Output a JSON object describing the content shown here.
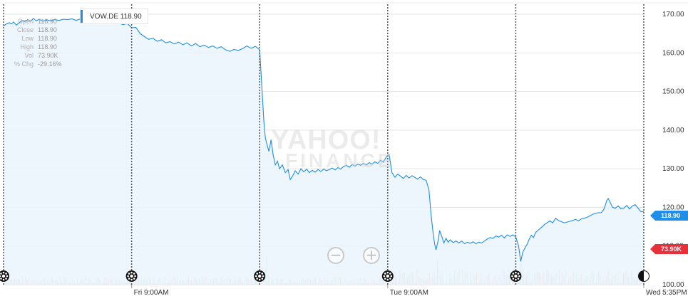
{
  "symbol": "VOW.DE",
  "last_price": "118.90",
  "volume_tag": "73.90K",
  "stats": [
    {
      "label": "Open",
      "value": "118.90"
    },
    {
      "label": "Close",
      "value": "118.90"
    },
    {
      "label": "Low",
      "value": "118.90"
    },
    {
      "label": "High",
      "value": "118.90"
    },
    {
      "label": "Vol",
      "value": "73.90K"
    },
    {
      "label": "% Chg",
      "value": "-29.16%"
    }
  ],
  "watermark": {
    "line1": "YAHOO!",
    "line2": "FINANCE"
  },
  "zoom": {
    "minus": "−",
    "plus": "+"
  },
  "colors": {
    "line": "#1e8ee8",
    "area": "#eaf4fd",
    "volume_up": "#b9dfc4",
    "volume_down": "#f3b8c0",
    "price_tag": "#1e8ee8",
    "volume_tag": "#e8303b"
  },
  "chart_data": {
    "type": "line",
    "title": "",
    "ylabel": "",
    "ylim": [
      100,
      170
    ],
    "y_ticks": [
      "170.00",
      "160.00",
      "150.00",
      "140.00",
      "130.00",
      "120.00",
      "110.00",
      "100.00"
    ],
    "x_ticks": [
      "Fri 9:00AM",
      "Tue 9:00AM",
      "Wed 5:35PM"
    ],
    "session_markers": 6,
    "series": [
      {
        "values": [
          [
            0,
            167.0
          ],
          [
            4,
            167.5
          ],
          [
            8,
            167.8
          ],
          [
            11,
            167.5
          ],
          [
            14,
            168.0
          ],
          [
            18,
            167.2
          ],
          [
            22,
            167.8
          ],
          [
            26,
            168.4
          ],
          [
            30,
            168.1
          ],
          [
            34,
            168.6
          ],
          [
            38,
            168.2
          ],
          [
            42,
            168.9
          ],
          [
            46,
            168.3
          ],
          [
            50,
            168.7
          ],
          [
            55,
            168.2
          ],
          [
            60,
            168.5
          ],
          [
            66,
            168.3
          ],
          [
            72,
            168.6
          ],
          [
            78,
            168.4
          ],
          [
            84,
            168.7
          ],
          [
            90,
            168.6
          ],
          [
            96,
            168.8
          ],
          [
            102,
            168.4
          ],
          [
            108,
            168.8
          ],
          [
            114,
            168.6
          ],
          [
            120,
            168.5
          ],
          [
            126,
            168.7
          ],
          [
            132,
            168.0
          ],
          [
            138,
            168.4
          ],
          [
            144,
            167.6
          ],
          [
            150,
            167.9
          ],
          [
            156,
            167.5
          ],
          [
            162,
            167.7
          ],
          [
            168,
            167.3
          ],
          [
            174,
            167.6
          ],
          [
            180,
            166.5
          ],
          [
            186,
            166.6
          ],
          [
            192,
            165.0
          ],
          [
            198,
            164.2
          ],
          [
            204,
            163.5
          ],
          [
            210,
            163.8
          ],
          [
            216,
            163.0
          ],
          [
            222,
            163.4
          ],
          [
            228,
            162.6
          ],
          [
            234,
            162.9
          ],
          [
            240,
            162.3
          ],
          [
            246,
            162.8
          ],
          [
            252,
            162.1
          ],
          [
            258,
            162.6
          ],
          [
            264,
            161.8
          ],
          [
            270,
            162.4
          ],
          [
            276,
            161.6
          ],
          [
            282,
            162.0
          ],
          [
            288,
            161.4
          ],
          [
            294,
            161.8
          ],
          [
            300,
            161.2
          ],
          [
            306,
            161.6
          ],
          [
            312,
            160.8
          ],
          [
            318,
            160.4
          ],
          [
            324,
            160.9
          ],
          [
            330,
            160.6
          ],
          [
            336,
            161.1
          ],
          [
            342,
            161.8
          ],
          [
            348,
            161.2
          ],
          [
            354,
            161.7
          ],
          [
            360,
            160.8
          ],
          [
            366,
            142.0
          ],
          [
            368,
            138.0
          ],
          [
            370,
            136.5
          ],
          [
            373,
            134.5
          ],
          [
            376,
            137.5
          ],
          [
            379,
            133.5
          ],
          [
            382,
            131.0
          ],
          [
            385,
            132.0
          ],
          [
            388,
            130.0
          ],
          [
            392,
            131.0
          ],
          [
            396,
            129.0
          ],
          [
            400,
            129.8
          ],
          [
            403,
            127.2
          ],
          [
            406,
            128.0
          ],
          [
            410,
            129.5
          ],
          [
            414,
            128.6
          ],
          [
            418,
            130.0
          ],
          [
            422,
            129.2
          ],
          [
            426,
            129.9
          ],
          [
            430,
            129.0
          ],
          [
            434,
            129.6
          ],
          [
            438,
            129.1
          ],
          [
            442,
            129.8
          ],
          [
            446,
            129.3
          ],
          [
            450,
            129.9
          ],
          [
            454,
            129.5
          ],
          [
            458,
            129.8
          ],
          [
            462,
            130.2
          ],
          [
            466,
            129.7
          ],
          [
            470,
            130.3
          ],
          [
            474,
            129.9
          ],
          [
            478,
            130.6
          ],
          [
            482,
            130.9
          ],
          [
            486,
            130.4
          ],
          [
            490,
            131.1
          ],
          [
            494,
            130.7
          ],
          [
            498,
            131.2
          ],
          [
            502,
            130.9
          ],
          [
            506,
            131.4
          ],
          [
            510,
            131.0
          ],
          [
            514,
            131.6
          ],
          [
            518,
            131.2
          ],
          [
            522,
            131.8
          ],
          [
            526,
            131.4
          ],
          [
            530,
            132.2
          ],
          [
            534,
            131.7
          ],
          [
            538,
            133.1
          ],
          [
            542,
            133.7
          ],
          [
            546,
            129.0
          ],
          [
            550,
            127.8
          ],
          [
            554,
            128.6
          ],
          [
            558,
            128.1
          ],
          [
            562,
            127.5
          ],
          [
            566,
            128.3
          ],
          [
            570,
            127.6
          ],
          [
            574,
            128.2
          ],
          [
            578,
            127.8
          ],
          [
            582,
            127.3
          ],
          [
            586,
            127.9
          ],
          [
            590,
            127.2
          ],
          [
            594,
            127.0
          ],
          [
            598,
            124.5
          ],
          [
            601,
            118.0
          ],
          [
            604,
            113.0
          ],
          [
            606,
            110.5
          ],
          [
            608,
            109.0
          ],
          [
            611,
            111.5
          ],
          [
            613,
            114.0
          ],
          [
            616,
            112.5
          ],
          [
            619,
            110.8
          ],
          [
            622,
            112.0
          ],
          [
            625,
            111.0
          ],
          [
            628,
            111.6
          ],
          [
            632,
            110.9
          ],
          [
            636,
            111.3
          ],
          [
            640,
            110.8
          ],
          [
            644,
            111.3
          ],
          [
            648,
            110.6
          ],
          [
            652,
            111.0
          ],
          [
            656,
            110.7
          ],
          [
            660,
            111.1
          ],
          [
            664,
            110.6
          ],
          [
            668,
            111.0
          ],
          [
            672,
            110.8
          ],
          [
            676,
            111.3
          ],
          [
            680,
            111.8
          ],
          [
            684,
            112.2
          ],
          [
            688,
            112.0
          ],
          [
            692,
            112.6
          ],
          [
            696,
            112.3
          ],
          [
            700,
            112.8
          ],
          [
            704,
            112.1
          ],
          [
            708,
            112.9
          ],
          [
            712,
            112.5
          ],
          [
            716,
            112.9
          ],
          [
            720,
            112.4
          ],
          [
            724,
            110.0
          ],
          [
            727,
            106.0
          ],
          [
            730,
            108.5
          ],
          [
            733,
            109.5
          ],
          [
            736,
            110.5
          ],
          [
            739,
            111.8
          ],
          [
            742,
            112.8
          ],
          [
            745,
            112.2
          ],
          [
            748,
            113.5
          ],
          [
            752,
            114.2
          ],
          [
            756,
            114.8
          ],
          [
            760,
            115.5
          ],
          [
            764,
            116.0
          ],
          [
            768,
            116.5
          ],
          [
            772,
            116.0
          ],
          [
            776,
            117.2
          ],
          [
            780,
            116.6
          ],
          [
            784,
            116.3
          ],
          [
            788,
            116.0
          ],
          [
            792,
            116.2
          ],
          [
            796,
            116.4
          ],
          [
            800,
            116.6
          ],
          [
            804,
            116.9
          ],
          [
            808,
            116.5
          ],
          [
            812,
            117.0
          ],
          [
            816,
            117.2
          ],
          [
            820,
            117.4
          ],
          [
            824,
            117.8
          ],
          [
            828,
            118.2
          ],
          [
            832,
            118.5
          ],
          [
            836,
            118.6
          ],
          [
            840,
            118.6
          ],
          [
            844,
            119.5
          ],
          [
            848,
            121.8
          ],
          [
            850,
            122.3
          ],
          [
            852,
            121.6
          ],
          [
            856,
            120.0
          ],
          [
            860,
            119.8
          ],
          [
            864,
            120.4
          ],
          [
            868,
            119.6
          ],
          [
            872,
            119.8
          ],
          [
            876,
            120.5
          ],
          [
            880,
            119.6
          ],
          [
            884,
            120.4
          ],
          [
            888,
            120.7
          ],
          [
            892,
            119.8
          ],
          [
            896,
            118.9
          ],
          [
            900,
            118.9
          ]
        ]
      }
    ]
  }
}
